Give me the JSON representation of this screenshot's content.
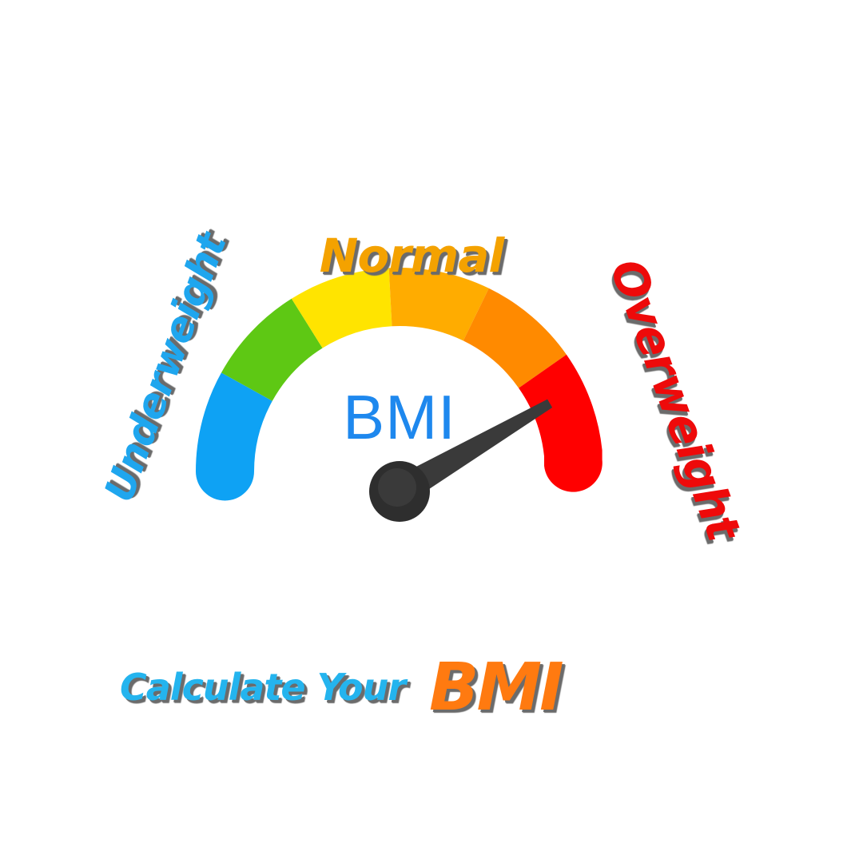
{
  "labels": {
    "underweight": "Underweight",
    "normal": "Normal",
    "overweight": "Overweight"
  },
  "gauge": {
    "center_label": "BMI",
    "segment_colors": [
      "#0ea2f4",
      "#5ec814",
      "#ffe400",
      "#ffac00",
      "#ff8a00",
      "#ff0000"
    ],
    "needle_fraction": 0.86,
    "needle_color": "#3a3a3a",
    "hub_color": "#2e2e2e"
  },
  "cta": {
    "text": "Calculate Your",
    "highlight": "BMI"
  },
  "colors": {
    "underweight": "#1fa6ee",
    "normal": "#f4a200",
    "overweight": "#ee0a0a",
    "cta_text": "#24b4ee",
    "cta_highlight": "#ff7a10",
    "shadow": "#6b6b6b"
  }
}
